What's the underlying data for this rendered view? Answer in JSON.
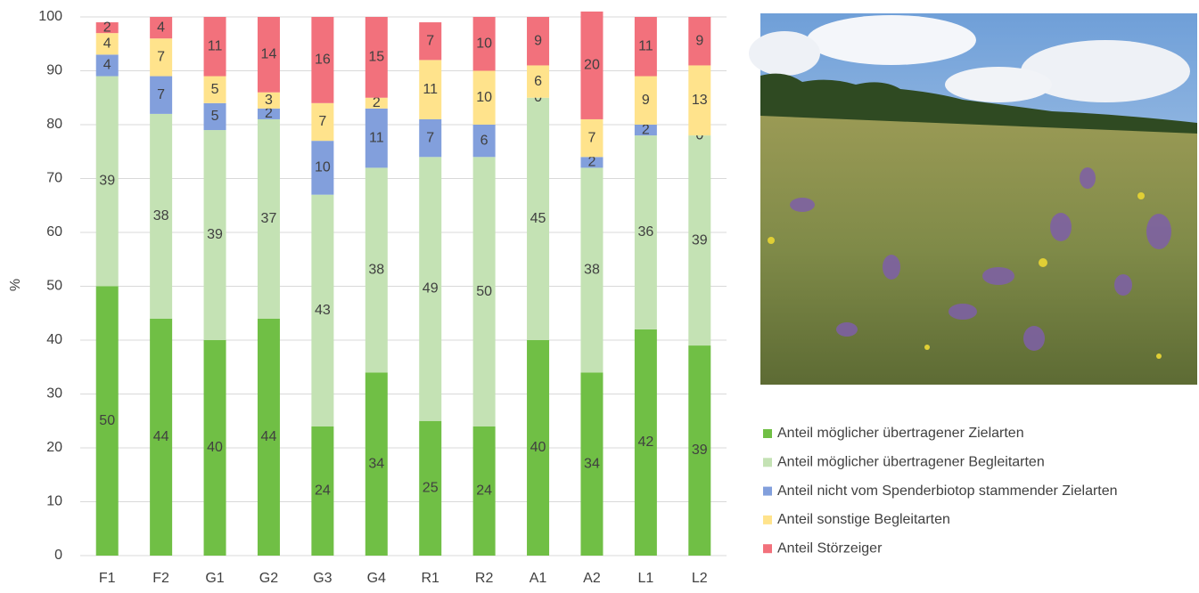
{
  "chart_data": {
    "type": "stacked_bar",
    "y_label": "%",
    "categories": [
      "F1",
      "F2",
      "G1",
      "G2",
      "G3",
      "G4",
      "R1",
      "R2",
      "A1",
      "A2",
      "L1",
      "L2"
    ],
    "series": [
      {
        "name": "Anteil möglicher übertragener Zielarten",
        "color": "#70bf45",
        "values": [
          50,
          44,
          40,
          44,
          24,
          34,
          25,
          24,
          40,
          34,
          42,
          39
        ]
      },
      {
        "name": "Anteil möglicher übertragener Begleitarten",
        "color": "#c4e2b4",
        "values": [
          39,
          38,
          39,
          37,
          43,
          38,
          49,
          50,
          45,
          38,
          36,
          39
        ]
      },
      {
        "name": "Anteil nicht vom Spenderbiotop stammender Zielarten",
        "color": "#829fdc",
        "values": [
          4,
          7,
          5,
          2,
          10,
          11,
          7,
          6,
          0,
          2,
          2,
          0
        ]
      },
      {
        "name": "Anteil sonstige Begleitarten",
        "color": "#ffe38c",
        "values": [
          4,
          7,
          5,
          3,
          7,
          2,
          11,
          10,
          6,
          7,
          9,
          13
        ]
      },
      {
        "name": "Anteil Störzeiger",
        "color": "#f2717c",
        "values": [
          2,
          4,
          11,
          14,
          16,
          15,
          7,
          10,
          9,
          20,
          11,
          9
        ]
      }
    ],
    "ylim": [
      0,
      100
    ],
    "yticks": [
      0,
      10,
      20,
      30,
      40,
      50,
      60,
      70,
      80,
      90,
      100
    ],
    "grid": true
  }
}
